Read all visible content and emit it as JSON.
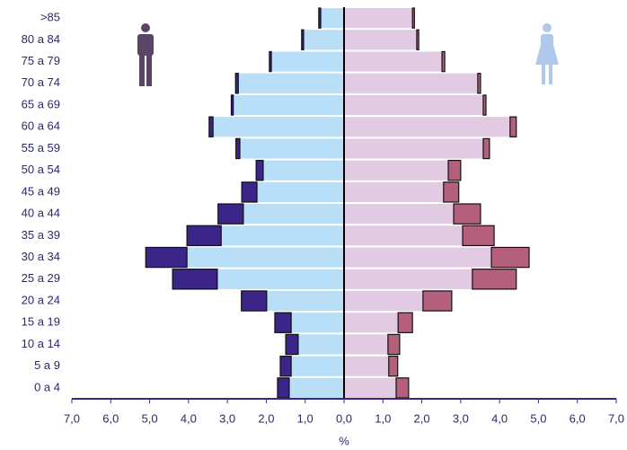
{
  "chart_data": {
    "type": "pyramid",
    "categories": [
      ">85",
      "80 a 84",
      "75 a 79",
      "70 a 74",
      "65 a 69",
      "60 a 64",
      "55 a 59",
      "50 a 54",
      "45 a 49",
      "40 a 44",
      "35 a 39",
      "30 a 34",
      "25 a 29",
      "20 a 24",
      "15 a 19",
      "10 a 14",
      "5 a 9",
      "0 a 4"
    ],
    "series": [
      {
        "side": "left",
        "color": "#b8dff7",
        "values": [
          0.6,
          1.04,
          1.87,
          2.72,
          2.85,
          3.37,
          2.68,
          2.08,
          2.24,
          2.59,
          3.16,
          4.04,
          3.26,
          1.99,
          1.36,
          1.18,
          1.36,
          1.41
        ]
      },
      {
        "side": "left",
        "color": "#3b2588",
        "values": [
          0.05,
          0.05,
          0.05,
          0.07,
          0.05,
          0.1,
          0.1,
          0.18,
          0.39,
          0.65,
          0.88,
          1.06,
          1.15,
          0.65,
          0.42,
          0.32,
          0.28,
          0.3
        ]
      },
      {
        "side": "right",
        "color": "#e2cbe2",
        "values": [
          1.76,
          1.87,
          2.52,
          3.44,
          3.58,
          4.27,
          3.58,
          2.68,
          2.56,
          2.82,
          3.05,
          3.79,
          3.3,
          2.03,
          1.39,
          1.13,
          1.15,
          1.34
        ]
      },
      {
        "side": "right",
        "color": "#b4607c",
        "values": [
          0.05,
          0.05,
          0.07,
          0.07,
          0.07,
          0.16,
          0.16,
          0.32,
          0.39,
          0.69,
          0.81,
          0.97,
          1.13,
          0.74,
          0.37,
          0.3,
          0.23,
          0.32
        ]
      }
    ],
    "xlabel": "%",
    "xlim": [
      -7,
      7
    ],
    "xticks": [
      {
        "value": -7,
        "label": "7,0"
      },
      {
        "value": -6,
        "label": "6,0"
      },
      {
        "value": -5,
        "label": "5,0"
      },
      {
        "value": -4,
        "label": "4,0"
      },
      {
        "value": -3,
        "label": "3,0"
      },
      {
        "value": -2,
        "label": "2,0"
      },
      {
        "value": -1,
        "label": "1,0"
      },
      {
        "value": 0,
        "label": "0,0"
      },
      {
        "value": 1,
        "label": "1,0"
      },
      {
        "value": 2,
        "label": "2,0"
      },
      {
        "value": 3,
        "label": "3,0"
      },
      {
        "value": 4,
        "label": "4,0"
      },
      {
        "value": 5,
        "label": "5,0"
      },
      {
        "value": 6,
        "label": "6,0"
      },
      {
        "value": 7,
        "label": "7,0"
      }
    ]
  }
}
